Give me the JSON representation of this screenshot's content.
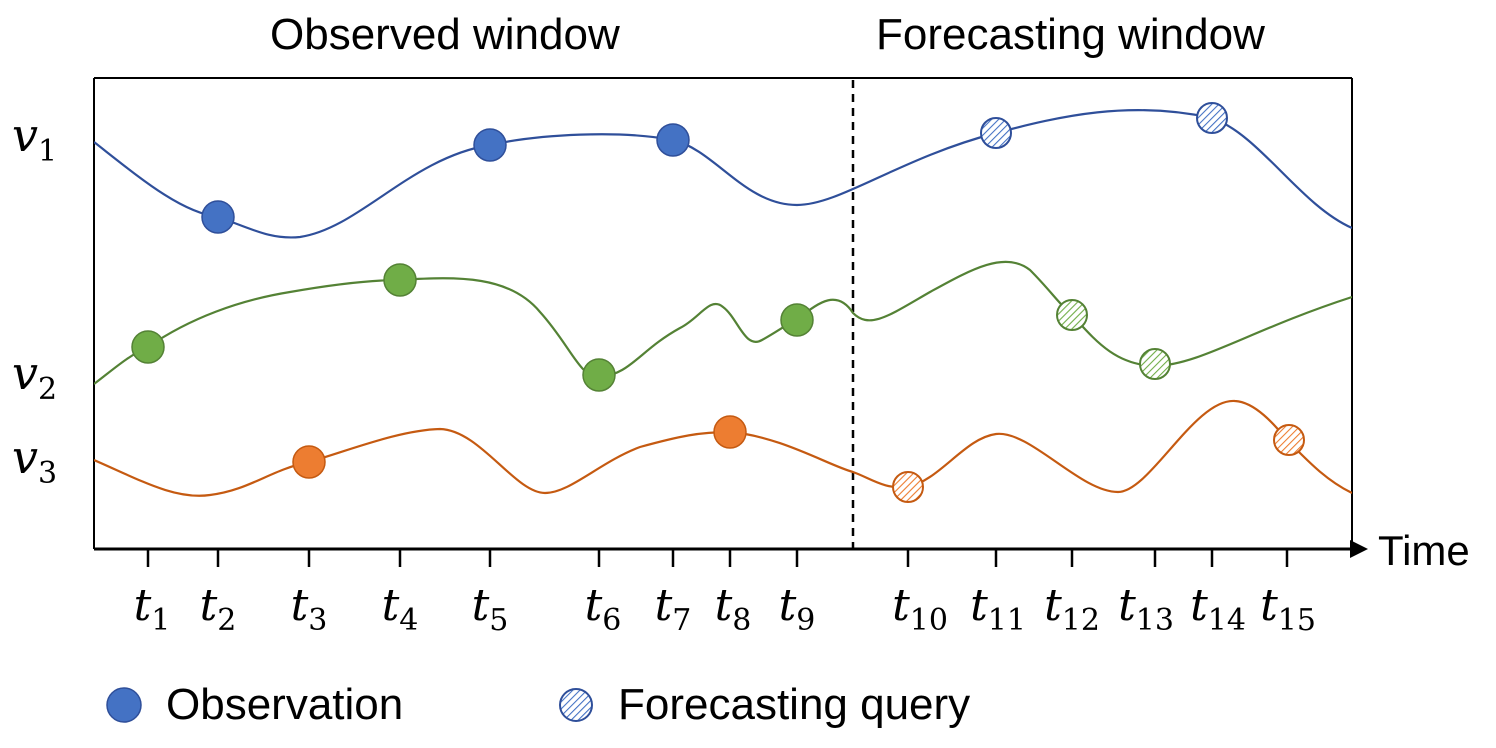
{
  "titles": {
    "observed": "Observed window",
    "forecasting": "Forecasting window"
  },
  "variables": [
    {
      "name": "v",
      "sub": "1"
    },
    {
      "name": "v",
      "sub": "2"
    },
    {
      "name": "v",
      "sub": "3"
    }
  ],
  "axis": {
    "x_label": "Time"
  },
  "ticks": [
    {
      "name": "t",
      "sub": "1"
    },
    {
      "name": "t",
      "sub": "2"
    },
    {
      "name": "t",
      "sub": "3"
    },
    {
      "name": "t",
      "sub": "4"
    },
    {
      "name": "t",
      "sub": "5"
    },
    {
      "name": "t",
      "sub": "6"
    },
    {
      "name": "t",
      "sub": "7"
    },
    {
      "name": "t",
      "sub": "8"
    },
    {
      "name": "t",
      "sub": "9"
    },
    {
      "name": "t",
      "sub": "10"
    },
    {
      "name": "t",
      "sub": "11"
    },
    {
      "name": "t",
      "sub": "12"
    },
    {
      "name": "t",
      "sub": "13"
    },
    {
      "name": "t",
      "sub": "14"
    },
    {
      "name": "t",
      "sub": "15"
    }
  ],
  "legend": {
    "observation": "Observation",
    "query": "Forecasting query"
  },
  "colors": {
    "v1": "#4472C4",
    "v2": "#70AD47",
    "v3": "#ED7D31",
    "v1_line": "#2F4F9A",
    "v2_line": "#548235",
    "v3_line": "#C55A11"
  }
}
